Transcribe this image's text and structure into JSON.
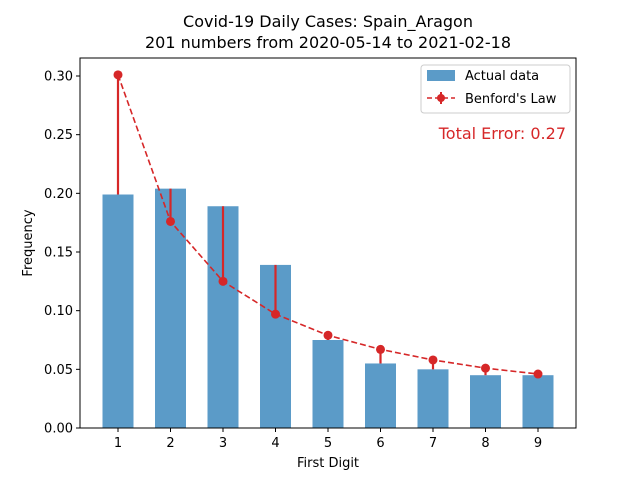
{
  "chart_data": {
    "type": "bar",
    "title": "Covid-19 Daily Cases: Spain_Aragon",
    "subtitle": "201 numbers from 2020-05-14 to 2021-02-18",
    "xlabel": "First Digit",
    "ylabel": "Frequency",
    "ylim": [
      0,
      0.3
    ],
    "yticks": [
      "0.00",
      "0.05",
      "0.10",
      "0.15",
      "0.20",
      "0.25",
      "0.30"
    ],
    "categories": [
      "1",
      "2",
      "3",
      "4",
      "5",
      "6",
      "7",
      "8",
      "9"
    ],
    "series": [
      {
        "name": "Actual data",
        "kind": "bar",
        "color": "#5b9bc8",
        "values": [
          0.199,
          0.204,
          0.189,
          0.139,
          0.075,
          0.055,
          0.05,
          0.045,
          0.045
        ]
      },
      {
        "name": "Benford's Law",
        "kind": "line-dashed-markers",
        "color": "#d62728",
        "values": [
          0.301,
          0.176,
          0.125,
          0.097,
          0.079,
          0.067,
          0.058,
          0.051,
          0.046
        ]
      }
    ],
    "annotation": "Total Error: 0.27",
    "annotation_color": "#d62728",
    "legend_position": "top-right",
    "grid": false
  }
}
